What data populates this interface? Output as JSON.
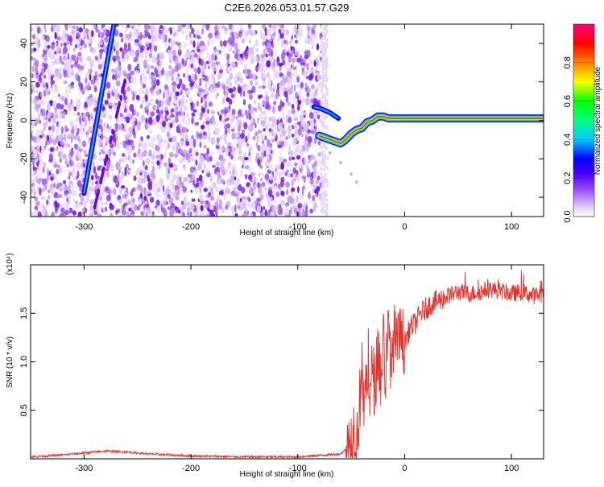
{
  "title": "C2E6.2026.053.01.57.G29",
  "chart_data": [
    {
      "type": "heatmap",
      "title": "C2E6.2026.053.01.57.G29",
      "xlabel": "Height of straight line (km)",
      "ylabel": "Frequency (Hz)",
      "xlim": [
        -350,
        130
      ],
      "ylim": [
        -50,
        50
      ],
      "xticks": [
        -300,
        -200,
        -100,
        0,
        100
      ],
      "yticks": [
        -40,
        -20,
        0,
        20,
        40
      ],
      "colorbar": {
        "label": "Normalized spectral amplitude",
        "range": [
          0,
          1
        ],
        "ticks": [
          0.0,
          0.2,
          0.4,
          0.6,
          0.8
        ],
        "colormap": [
          "#e9d8fb",
          "#7a00ff",
          "#0000ff",
          "#00ffff",
          "#00ff00",
          "#ffff00",
          "#ff8000",
          "#ff0000",
          "#ff0080"
        ]
      },
      "features": {
        "noise_region_x": [
          -350,
          -78
        ],
        "diagonal_line": {
          "x": [
            -300,
            -272
          ],
          "y": [
            -38,
            50
          ]
        },
        "secondary_diagonal": {
          "x": [
            -290,
            -262
          ],
          "y": [
            -45,
            20
          ]
        },
        "carrier_path": {
          "x": [
            -80,
            -75,
            -70,
            -65,
            -60,
            -55,
            -50,
            -45,
            -40,
            -35,
            -30,
            -25,
            -20,
            -15,
            -10,
            -5,
            0,
            20,
            40,
            60,
            80,
            100,
            130
          ],
          "y": [
            -8,
            -9,
            -10,
            -11,
            -12,
            -10,
            -7,
            -5,
            -4,
            -1,
            0,
            2,
            2,
            1,
            1,
            1,
            1,
            1,
            1,
            1,
            1,
            1,
            1
          ]
        },
        "upper_branch": {
          "x": [
            -85,
            -78,
            -70,
            -62
          ],
          "y": [
            7,
            6,
            4,
            1
          ]
        },
        "lower_trail": {
          "x": [
            -70,
            -60,
            -50,
            -45
          ],
          "y": [
            -17,
            -22,
            -28,
            -32
          ]
        }
      }
    },
    {
      "type": "line",
      "xlabel": "Height of straight line (km)",
      "ylabel": "SNR (10 * v/v)",
      "multiplier": "(x10⁴)",
      "xlim": [
        -350,
        130
      ],
      "ylim": [
        0,
        2.0
      ],
      "xticks": [
        -300,
        -200,
        -100,
        0,
        100
      ],
      "yticks": [
        0.5,
        1.0,
        1.5
      ],
      "ytick_labels": [
        "0.5",
        "1.0",
        "1.5"
      ],
      "color": "#e8302a",
      "x": [
        -350,
        -320,
        -300,
        -280,
        -260,
        -240,
        -200,
        -150,
        -100,
        -60,
        -55,
        -50,
        -47,
        -45,
        -42,
        -40,
        -38,
        -35,
        -32,
        -30,
        -28,
        -25,
        -22,
        -20,
        -18,
        -15,
        -12,
        -10,
        -8,
        -5,
        0,
        5,
        10,
        15,
        20,
        25,
        30,
        40,
        50,
        60,
        70,
        80,
        90,
        100,
        110,
        120,
        130
      ],
      "y": [
        0.02,
        0.04,
        0.06,
        0.08,
        0.07,
        0.05,
        0.03,
        0.02,
        0.02,
        0.05,
        0.1,
        0.2,
        0.35,
        0.15,
        0.6,
        0.9,
        0.5,
        0.95,
        0.55,
        1.05,
        0.7,
        1.15,
        0.75,
        1.25,
        0.85,
        1.3,
        0.9,
        1.35,
        1.1,
        1.25,
        1.2,
        1.35,
        1.4,
        1.5,
        1.55,
        1.6,
        1.62,
        1.68,
        1.72,
        1.7,
        1.72,
        1.75,
        1.73,
        1.7,
        1.72,
        1.68,
        1.7
      ]
    }
  ]
}
